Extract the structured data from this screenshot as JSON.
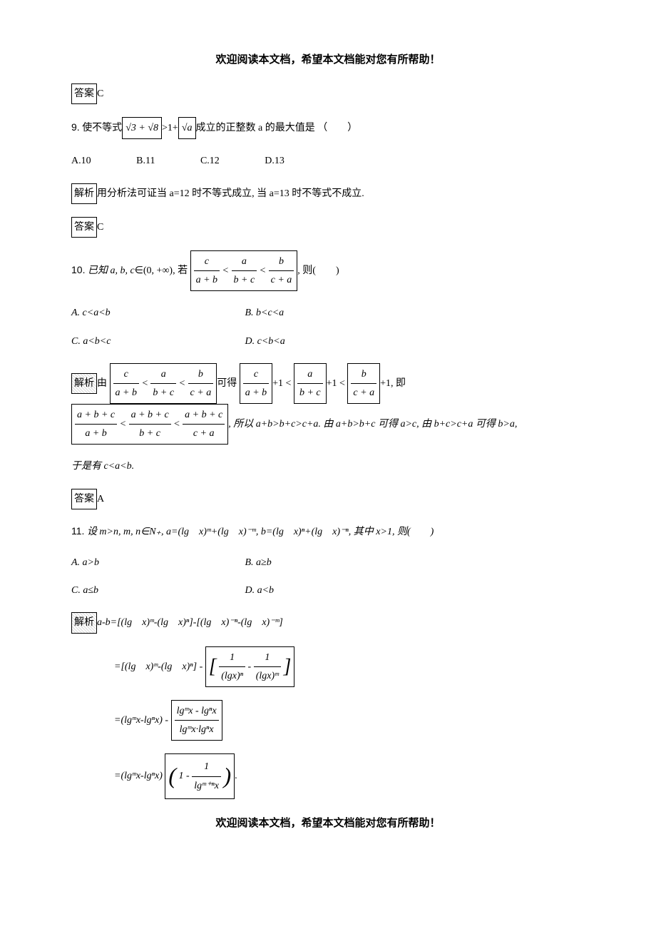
{
  "page": {
    "header_text": "欢迎阅读本文档，希望本文档能对您有所帮助！",
    "footer_text": "欢迎阅读本文档，希望本文档能对您有所帮助！",
    "colors": {
      "text": "#000000",
      "background": "#ffffff",
      "border": "#000000"
    },
    "fonts": {
      "body": "SimSun",
      "heading": "SimHei",
      "math": "Times New Roman",
      "body_size": 14,
      "header_size": 15
    }
  },
  "blocks": {
    "ans8": {
      "label": "答案",
      "value": "C"
    },
    "q9": {
      "num": "9.",
      "stem_pre": "使不等式",
      "expr_left": "√3 + √8",
      "mid": ">1+",
      "expr_right": "√a",
      "stem_post": "成立的正整数 a 的最大值是 （　　）",
      "options": {
        "A": "A.10",
        "B": "B.11",
        "C": "C.12",
        "D": "D.13"
      },
      "expl_label": "解析",
      "expl_text": "用分析法可证当 a=12 时不等式成立, 当 a=13 时不等式不成立.",
      "ans_label": "答案",
      "ans_value": "C"
    },
    "q10": {
      "num": "10.",
      "stem_pre": "已知 a, b, c∈(0, +∞), 若",
      "ineq": {
        "f1": {
          "num": "c",
          "den": "a + b"
        },
        "f2": {
          "num": "a",
          "den": "b + c"
        },
        "f3": {
          "num": "b",
          "den": "c + a"
        },
        "op": "<"
      },
      "stem_post": ", 则(　　)",
      "options": {
        "A": "A. c<a<b",
        "B": "B. b<c<a",
        "C": "C. a<b<c",
        "D": "D. c<b<a"
      },
      "expl_label": "解析",
      "expl_text_pre": "由",
      "expl_text_mid1": "可得",
      "plus1": "+1 <",
      "plus1_last": "+1, 即",
      "ineq2": {
        "top": "a + b + c",
        "d1": "a + b",
        "d2": "b + c",
        "d3": "c + a",
        "op": "<"
      },
      "expl_text_tail": ", 所以 a+b>b+c>c+a. 由 a+b>b+c 可得 a>c, 由 b+c>c+a 可得 b>a,",
      "expl_text_tail2": "于是有 c<a<b.",
      "ans_label": "答案",
      "ans_value": "A"
    },
    "q11": {
      "num": "11.",
      "stem": "设 m>n, m, n∈N₊, a=(lg　x)ᵐ+(lg　x)⁻ᵐ, b=(lg　x)ⁿ+(lg　x)⁻ⁿ, 其中 x>1, 则(　　)",
      "options": {
        "A": "A. a>b",
        "B": "B. a≥b",
        "C": "C. a≤b",
        "D": "D. a<b"
      },
      "expl_label": "解析",
      "line1": "a-b=[(lg　x)ᵐ-(lg　x)ⁿ]-[(lg　x)⁻ⁿ-(lg　x)⁻ᵐ]",
      "line2_pre": "=[(lg　x)ᵐ-(lg　x)ⁿ] -",
      "line2_box": {
        "f1": {
          "num": "1",
          "den": "(lgx)ⁿ"
        },
        "minus": "-",
        "f2": {
          "num": "1",
          "den": "(lgx)ᵐ"
        }
      },
      "line3_pre": "=(lgᵐx-lgⁿx) -",
      "line3_box": {
        "num": "lgᵐx - lgⁿx",
        "den": "lgᵐx·lgⁿx"
      },
      "line4_pre": "=(lgᵐx-lgⁿx)",
      "line4_box": {
        "one": "1 -",
        "num": "1",
        "den": "lgᵐ⁺ⁿx"
      },
      "line4_post": "."
    }
  }
}
